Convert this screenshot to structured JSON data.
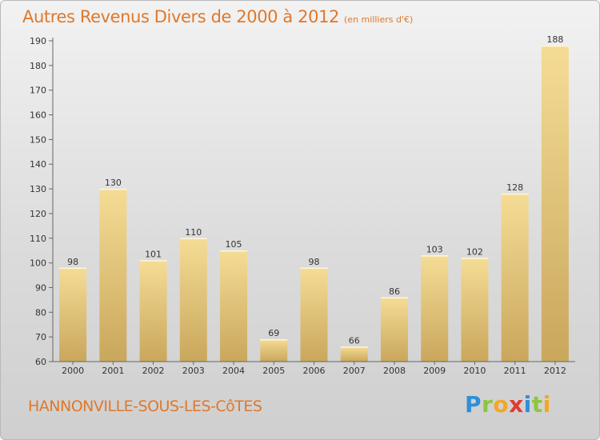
{
  "title": "Autres Revenus Divers de 2000 à 2012",
  "subtitle": "(en milliers d'€)",
  "commune": "HANNONVILLE-SOUS-LES-CôTES",
  "logo": {
    "text": "Proxiti",
    "letters": [
      {
        "ch": "P",
        "color": "#2f8fd8"
      },
      {
        "ch": "r",
        "color": "#8cc63f"
      },
      {
        "ch": "o",
        "color": "#f5a623"
      },
      {
        "ch": "x",
        "color": "#e03c31"
      },
      {
        "ch": "i",
        "color": "#2f8fd8"
      },
      {
        "ch": "t",
        "color": "#8cc63f"
      },
      {
        "ch": "i",
        "color": "#f5a623"
      }
    ]
  },
  "colors": {
    "accent": "#e0782a",
    "bar_top": "#f5dc95",
    "bar_bottom": "#c9a75c"
  },
  "chart_data": {
    "type": "bar",
    "categories": [
      "2000",
      "2001",
      "2002",
      "2003",
      "2004",
      "2005",
      "2006",
      "2007",
      "2008",
      "2009",
      "2010",
      "2011",
      "2012"
    ],
    "values": [
      98,
      130,
      101,
      110,
      105,
      69,
      98,
      66,
      86,
      103,
      102,
      128,
      188
    ],
    "ylim": [
      60,
      190
    ],
    "yticks": [
      60,
      70,
      80,
      90,
      100,
      110,
      120,
      130,
      140,
      150,
      160,
      170,
      180,
      190
    ],
    "grid": false,
    "data_labels": true
  }
}
